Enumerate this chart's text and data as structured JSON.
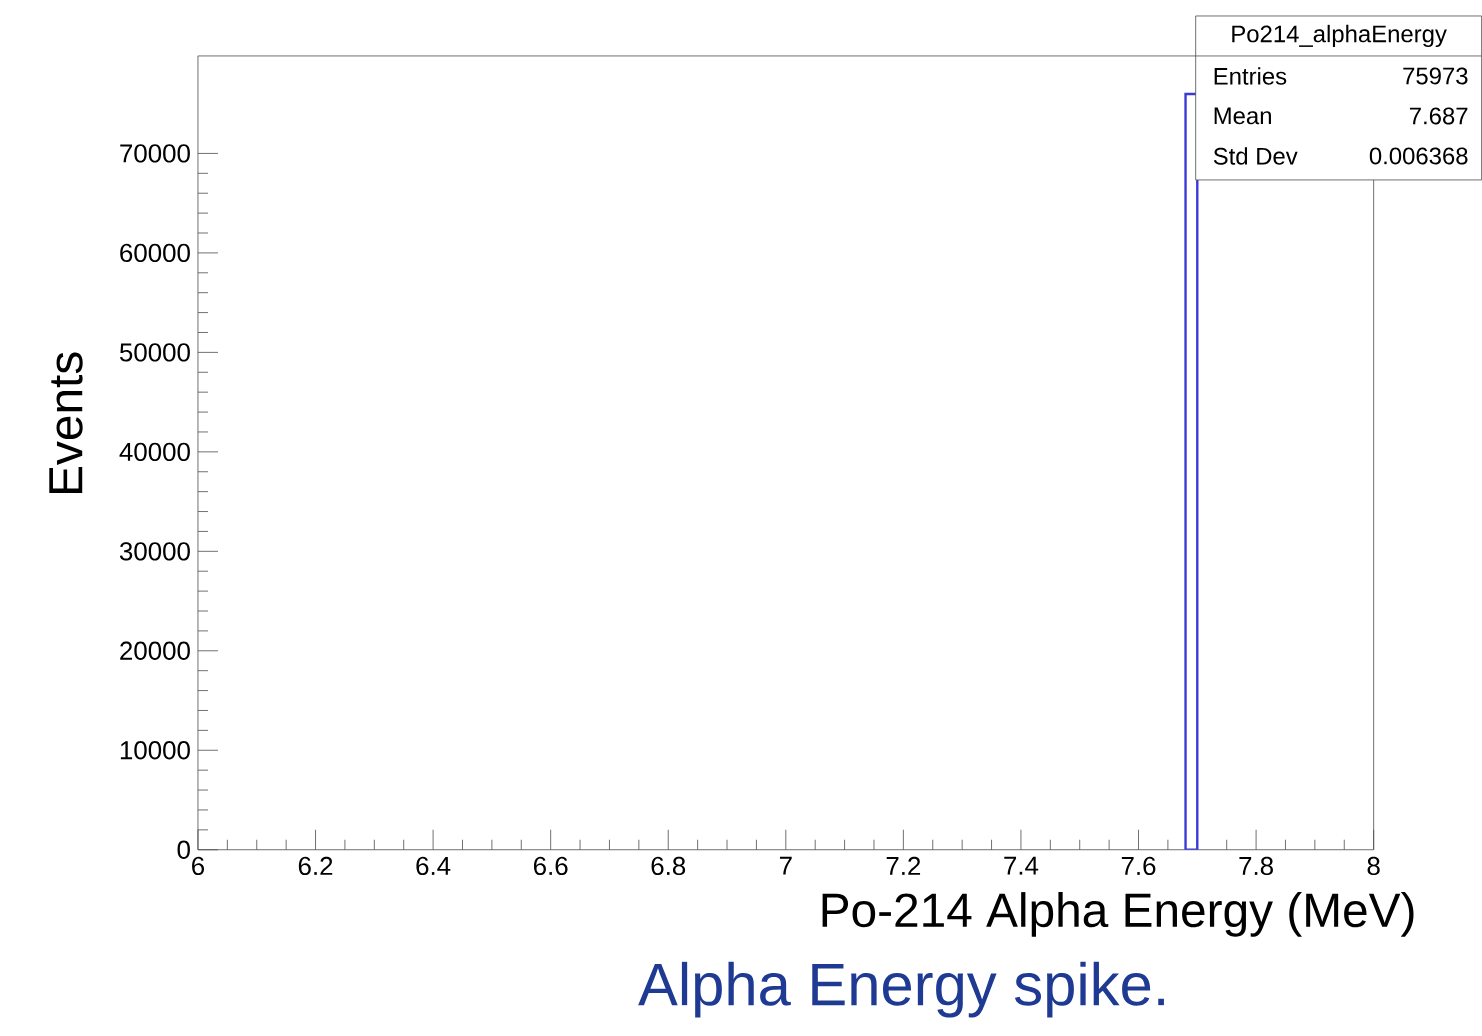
{
  "chart_data": {
    "type": "histogram",
    "xlabel": "Po-214 Alpha Energy (MeV)",
    "ylabel": "Events",
    "bins": [
      7.68,
      7.7
    ],
    "values": [
      75973
    ],
    "color": "#3a3ad8",
    "xlim": [
      6,
      8
    ],
    "ylim": [
      0,
      79800
    ],
    "xticks": [
      6,
      6.2,
      6.4,
      6.6,
      6.8,
      7,
      7.2,
      7.4,
      7.6,
      7.8,
      8
    ],
    "yticks": [
      0,
      10000,
      20000,
      30000,
      40000,
      50000,
      60000,
      70000
    ],
    "grid": false,
    "annotations": [
      "Po214_alphaEnergy",
      "Entries",
      "75973",
      "Mean",
      "7.687",
      "Std Dev",
      "0.006368",
      "Alpha Energy spike."
    ]
  }
}
